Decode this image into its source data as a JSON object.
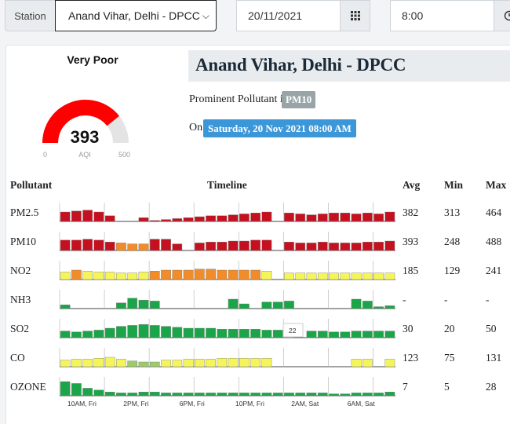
{
  "controls": {
    "station_label": "Station",
    "station_value": "Anand Vihar, Delhi - DPCC",
    "date_value": "20/11/2021",
    "time_value": "8:00"
  },
  "aqi": {
    "status": "Very Poor",
    "value": 393,
    "label": "AQI",
    "min": 0,
    "max": 500,
    "color": "#ff0000"
  },
  "station_title": "Anand Vihar, Delhi - DPCC",
  "prominent": {
    "label": "Prominent Pollutant is",
    "value": "PM10"
  },
  "on": {
    "label": "On",
    "value": "Saturday, 20 Nov 2021 08:00 AM"
  },
  "table": {
    "headers": {
      "pollutant": "Pollutant",
      "timeline": "Timeline",
      "avg": "Avg",
      "min": "Min",
      "max": "Max"
    },
    "time_labels": [
      "10AM, Fri",
      "2PM, Fri",
      "6PM, Fri",
      "10PM, Fri",
      "2AM, Sat",
      "6AM, Sat"
    ],
    "tooltip": "22",
    "rows": [
      {
        "name": "PM2.5",
        "avg": "382",
        "min": "313",
        "max": "464",
        "bars": [
          0.5,
          0.55,
          0.6,
          0.5,
          0.3,
          0,
          0,
          0.2,
          0.05,
          0.1,
          0.15,
          0.2,
          0.25,
          0.3,
          0.3,
          0.35,
          0.4,
          0.45,
          0.5,
          0,
          0.45,
          0.4,
          0.35,
          0.4,
          0.45,
          0.45,
          0.4,
          0.45,
          0.4,
          0.5
        ],
        "colors": [
          "#c4101f",
          "#c4101f",
          "#c4101f",
          "#c4101f",
          "#c4101f",
          "#c4101f",
          "#c4101f",
          "#c4101f",
          "#c4101f",
          "#c4101f",
          "#c4101f",
          "#c4101f",
          "#c4101f",
          "#c4101f",
          "#c4101f",
          "#c4101f",
          "#c4101f",
          "#c4101f",
          "#c4101f",
          "#c4101f",
          "#c4101f",
          "#c4101f",
          "#c4101f",
          "#c4101f",
          "#c4101f",
          "#c4101f",
          "#c4101f",
          "#c4101f",
          "#c4101f",
          "#c4101f"
        ]
      },
      {
        "name": "PM10",
        "avg": "393",
        "min": "248",
        "max": "488",
        "bars": [
          0.55,
          0.55,
          0.6,
          0.55,
          0.45,
          0.4,
          0.35,
          0.35,
          0.6,
          0.6,
          0.35,
          0,
          0.4,
          0.45,
          0.45,
          0.5,
          0.5,
          0.55,
          0.55,
          0,
          0.45,
          0.4,
          0.4,
          0.45,
          0.4,
          0.4,
          0.4,
          0.45,
          0.45,
          0.5
        ],
        "colors": [
          "#c4101f",
          "#c4101f",
          "#c4101f",
          "#c4101f",
          "#c4101f",
          "#f28c28",
          "#f28c28",
          "#f28c28",
          "#c4101f",
          "#c4101f",
          "#c4101f",
          "#c4101f",
          "#c4101f",
          "#c4101f",
          "#c4101f",
          "#c4101f",
          "#c4101f",
          "#c4101f",
          "#c4101f",
          "#c4101f",
          "#c4101f",
          "#c4101f",
          "#c4101f",
          "#c4101f",
          "#c4101f",
          "#c4101f",
          "#c4101f",
          "#c4101f",
          "#c4101f",
          "#c4101f"
        ]
      },
      {
        "name": "NO2",
        "avg": "185",
        "min": "129",
        "max": "241",
        "bars": [
          0.4,
          0.5,
          0.45,
          0.4,
          0.4,
          0.35,
          0.35,
          0.4,
          0.45,
          0.5,
          0.5,
          0.5,
          0.55,
          0.55,
          0.5,
          0.5,
          0.5,
          0.5,
          0.45,
          0,
          0.35,
          0.35,
          0.35,
          0.35,
          0.35,
          0.35,
          0.35,
          0.35,
          0.35,
          0.35
        ],
        "colors": [
          "#f5f55a",
          "#f28c28",
          "#f5f55a",
          "#f5f55a",
          "#f5f55a",
          "#f5f55a",
          "#f5f55a",
          "#f5f55a",
          "#f28c28",
          "#f28c28",
          "#f28c28",
          "#f28c28",
          "#f28c28",
          "#f28c28",
          "#f28c28",
          "#f28c28",
          "#f28c28",
          "#f28c28",
          "#f5f55a",
          "#f5f55a",
          "#f5f55a",
          "#f5f55a",
          "#f5f55a",
          "#f5f55a",
          "#f5f55a",
          "#f5f55a",
          "#f5f55a",
          "#f5f55a",
          "#f5f55a",
          "#f5f55a"
        ]
      },
      {
        "name": "NH3",
        "avg": "-",
        "min": "-",
        "max": "-",
        "bars": [
          0.2,
          0,
          0,
          0,
          0,
          0.3,
          0.55,
          0.45,
          0.4,
          0,
          0,
          0,
          0,
          0,
          0,
          0.5,
          0.25,
          0,
          0.35,
          0.35,
          0.4,
          0,
          0,
          0,
          0,
          0,
          0.5,
          0.4,
          0.1,
          0.15
        ],
        "colors": [
          "#1aa548",
          "#1aa548",
          "#1aa548",
          "#1aa548",
          "#1aa548",
          "#1aa548",
          "#1aa548",
          "#1aa548",
          "#1aa548",
          "#1aa548",
          "#1aa548",
          "#1aa548",
          "#1aa548",
          "#1aa548",
          "#1aa548",
          "#1aa548",
          "#1aa548",
          "#1aa548",
          "#1aa548",
          "#1aa548",
          "#1aa548",
          "#1aa548",
          "#1aa548",
          "#1aa548",
          "#1aa548",
          "#1aa548",
          "#1aa548",
          "#1aa548",
          "#1aa548",
          "#1aa548"
        ]
      },
      {
        "name": "SO2",
        "avg": "30",
        "min": "20",
        "max": "50",
        "bars": [
          0.35,
          0.3,
          0.35,
          0.4,
          0.5,
          0.6,
          0.65,
          0.7,
          0.65,
          0.6,
          0.55,
          0.5,
          0.5,
          0.5,
          0.45,
          0.45,
          0.45,
          0.45,
          0.4,
          0.4,
          0.35,
          0,
          0.35,
          0.35,
          0.3,
          0.3,
          0.35,
          0.35,
          0.35,
          0.35
        ],
        "colors": [
          "#1aa548",
          "#1aa548",
          "#1aa548",
          "#1aa548",
          "#1aa548",
          "#1aa548",
          "#1aa548",
          "#1aa548",
          "#1aa548",
          "#1aa548",
          "#1aa548",
          "#1aa548",
          "#1aa548",
          "#1aa548",
          "#1aa548",
          "#1aa548",
          "#1aa548",
          "#1aa548",
          "#1aa548",
          "#1aa548",
          "#1aa548",
          "#1aa548",
          "#1aa548",
          "#1aa548",
          "#1aa548",
          "#1aa548",
          "#1aa548",
          "#1aa548",
          "#1aa548",
          "#1aa548"
        ]
      },
      {
        "name": "CO",
        "avg": "123",
        "min": "75",
        "max": "131",
        "bars": [
          0.35,
          0.4,
          0.4,
          0.45,
          0.5,
          0.4,
          0.3,
          0.25,
          0.25,
          0.35,
          0.35,
          0.4,
          0.4,
          0.4,
          0.45,
          0.45,
          0.45,
          0.45,
          0.45,
          0,
          0,
          0,
          0,
          0,
          0,
          0,
          0.4,
          0.4,
          0,
          0.4
        ],
        "colors": [
          "#f5f55a",
          "#f5f55a",
          "#f5f55a",
          "#f5f55a",
          "#f5f55a",
          "#f5f55a",
          "#9ccc65",
          "#9ccc65",
          "#9ccc65",
          "#f5f55a",
          "#f5f55a",
          "#f5f55a",
          "#f5f55a",
          "#f5f55a",
          "#f5f55a",
          "#f5f55a",
          "#f5f55a",
          "#f5f55a",
          "#f5f55a",
          "#f5f55a",
          "#f5f55a",
          "#f5f55a",
          "#f5f55a",
          "#f5f55a",
          "#f5f55a",
          "#f5f55a",
          "#f5f55a",
          "#f5f55a",
          "#f5f55a",
          "#f5f55a"
        ]
      },
      {
        "name": "OZONE",
        "avg": "7",
        "min": "5",
        "max": "28",
        "bars": [
          0.75,
          0.65,
          0.4,
          0.3,
          0.2,
          0.15,
          0.15,
          0.2,
          0.2,
          0.15,
          0.15,
          0.15,
          0.15,
          0.15,
          0.15,
          0.15,
          0.15,
          0.15,
          0.15,
          0.15,
          0.15,
          0.15,
          0.15,
          0.15,
          0.1,
          0.1,
          0.15,
          0.15,
          0.15,
          0.2
        ],
        "colors": [
          "#1aa548",
          "#1aa548",
          "#1aa548",
          "#1aa548",
          "#1aa548",
          "#1aa548",
          "#1aa548",
          "#1aa548",
          "#1aa548",
          "#1aa548",
          "#1aa548",
          "#1aa548",
          "#1aa548",
          "#1aa548",
          "#1aa548",
          "#1aa548",
          "#1aa548",
          "#1aa548",
          "#1aa548",
          "#1aa548",
          "#1aa548",
          "#1aa548",
          "#1aa548",
          "#1aa548",
          "#1aa548",
          "#1aa548",
          "#1aa548",
          "#1aa548",
          "#1aa548",
          "#1aa548"
        ]
      }
    ]
  }
}
